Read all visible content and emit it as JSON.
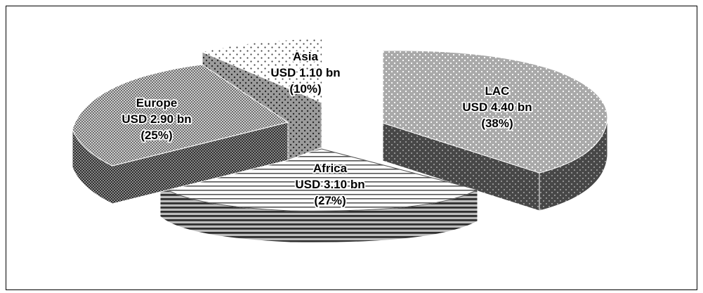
{
  "chart_data": {
    "type": "pie",
    "title": "",
    "style": "3d-exploded",
    "unit": "USD bn",
    "slices": [
      {
        "name": "LAC",
        "value_text": "USD 4.40 bn",
        "pct_text": "(38%)",
        "value": 4.4,
        "percent": 38,
        "pattern": "light-dots"
      },
      {
        "name": "Africa",
        "value_text": "USD 3.10 bn",
        "pct_text": "(27%)",
        "value": 3.1,
        "percent": 27,
        "pattern": "horizontal-stripes"
      },
      {
        "name": "Europe",
        "value_text": "USD 2.90 bn",
        "pct_text": "(25%)",
        "value": 2.9,
        "percent": 25,
        "pattern": "checker"
      },
      {
        "name": "Asia",
        "value_text": "USD 1.10 bn",
        "pct_text": "(10%)",
        "value": 1.1,
        "percent": 10,
        "pattern": "sparse-dots"
      }
    ]
  }
}
